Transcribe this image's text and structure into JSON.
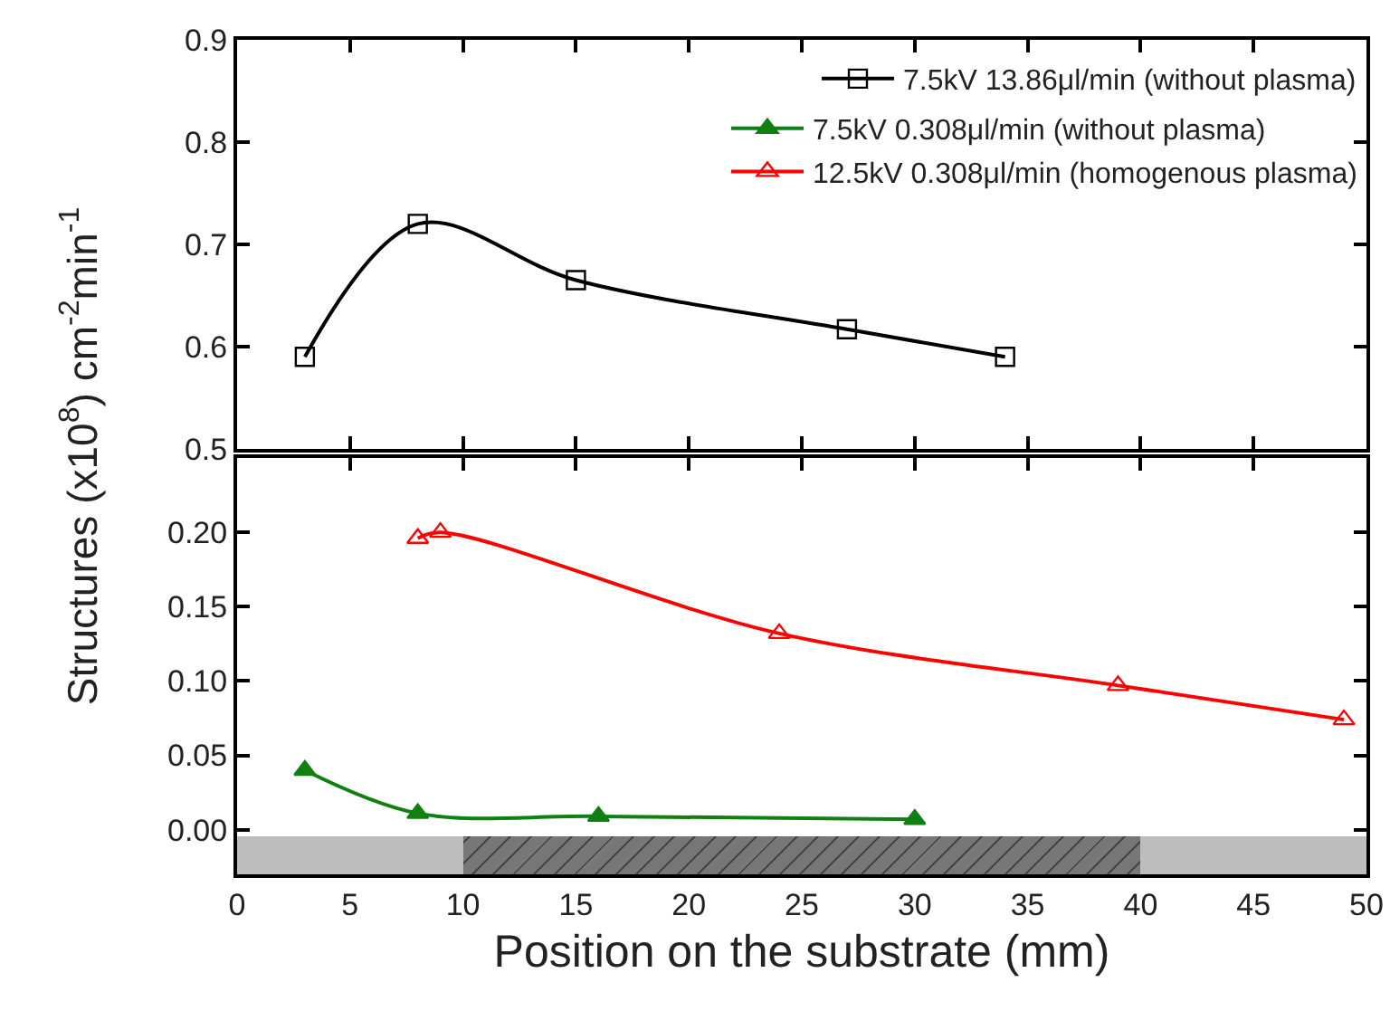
{
  "chart_data": [
    {
      "type": "line",
      "xlim": [
        0,
        50
      ],
      "xticks": [
        0,
        5,
        10,
        15,
        20,
        25,
        30,
        35,
        40,
        45,
        50
      ],
      "ylim": [
        0.5,
        0.9
      ],
      "yticks": [
        0.5,
        0.6,
        0.7,
        0.8,
        0.9
      ],
      "tick_labels": "y",
      "grid": false,
      "legend": "top right",
      "series": [
        {
          "name": "7.5kV 13.86μl/min (without plasma)",
          "color": "#000000",
          "marker": "square",
          "x": [
            3,
            8,
            15,
            27,
            34
          ],
          "values": [
            0.59,
            0.72,
            0.665,
            0.617,
            0.59
          ]
        }
      ]
    },
    {
      "type": "line",
      "xlabel": "Position on the substrate (mm)",
      "ylabel": "Structures (x10$^{8}$) cm$^{-2}$min$^{-1}$",
      "xlim": [
        0,
        50
      ],
      "xticks": [
        0,
        5,
        10,
        15,
        20,
        25,
        30,
        35,
        40,
        45,
        50
      ],
      "ylim": [
        -0.03,
        0.25
      ],
      "yticks": [
        {
          "value": 0,
          "label": "0.00"
        },
        {
          "value": 0.05,
          "label": "0.05"
        },
        {
          "value": 0.1,
          "label": "0.10"
        },
        {
          "value": 0.15,
          "label": "0.15"
        },
        {
          "value": 0.2,
          "label": "0.20"
        }
      ],
      "grid": false,
      "legend": "top right",
      "series": [
        {
          "name": "7.5kV 0.308μl/min (without plasma)",
          "color": "#108010",
          "marker": "triangle",
          "x": [
            3,
            8,
            16,
            30
          ],
          "values": [
            0.04,
            0.011,
            0.009,
            0.007
          ]
        },
        {
          "name": "12.5kV 0.308μl/min (homogenous plasma)",
          "color": "#ff0000",
          "marker": "triangle-open",
          "x": [
            8,
            9,
            24,
            39,
            49
          ],
          "values": [
            0.196,
            0.2,
            0.132,
            0.097,
            0.074
          ]
        }
      ]
    }
  ]
}
